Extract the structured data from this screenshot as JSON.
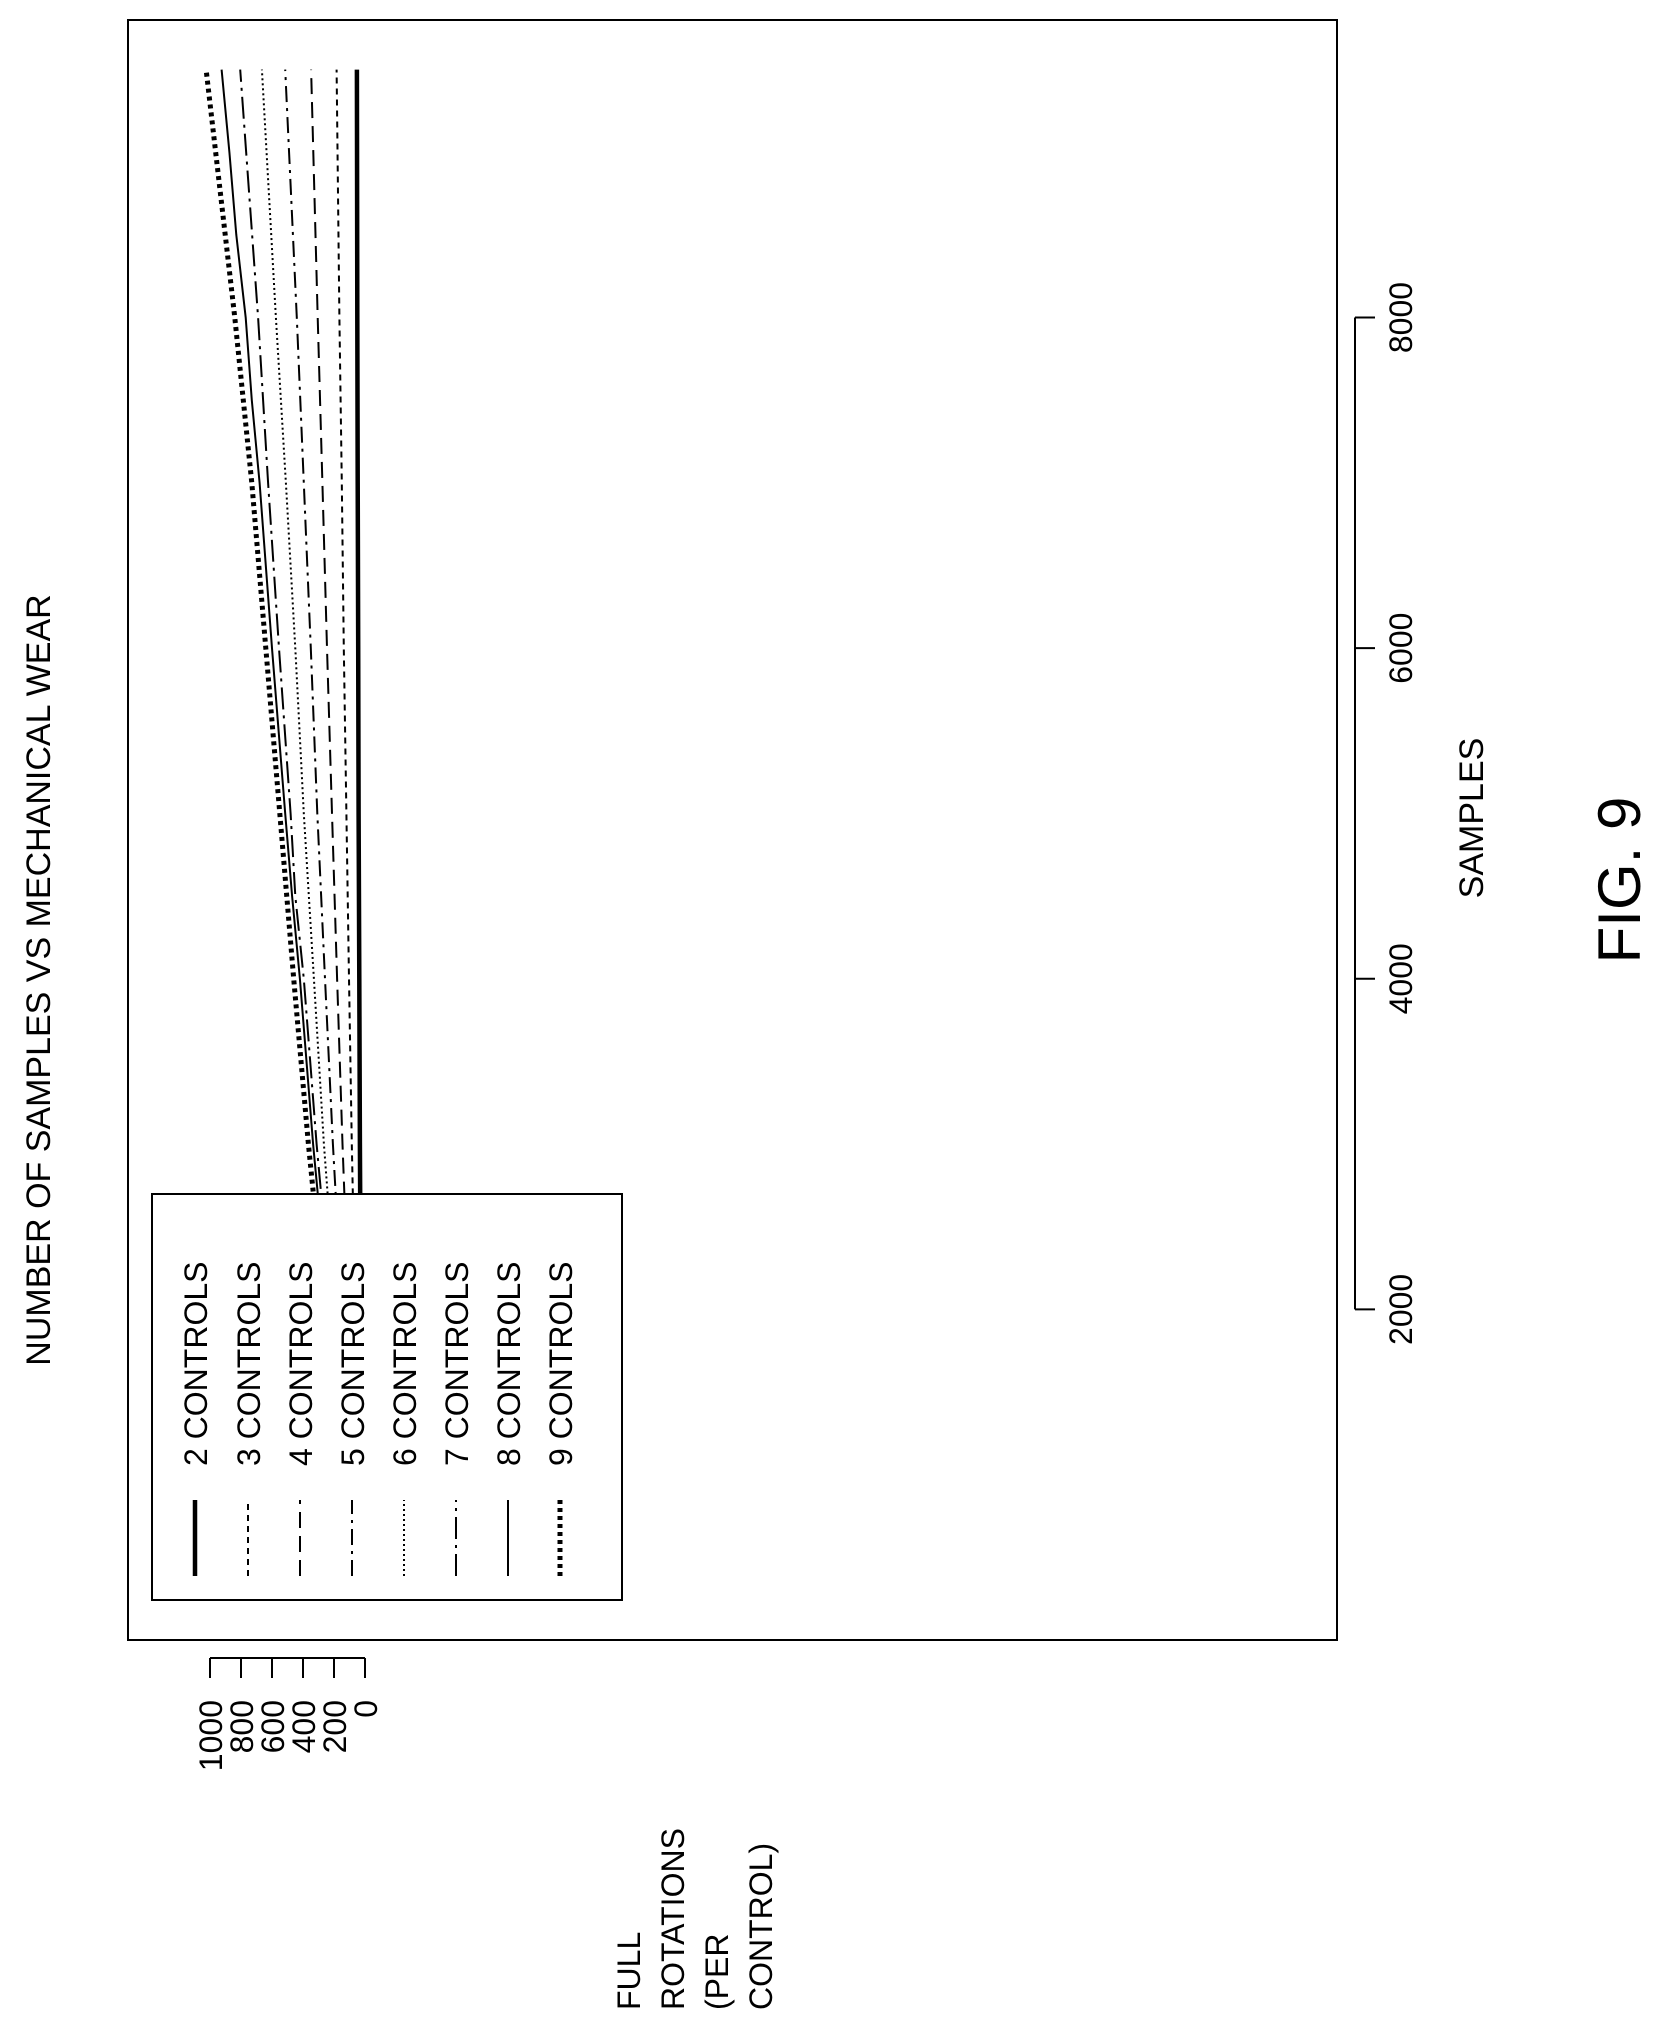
{
  "figure_label": "FIG. 9",
  "chart_data": {
    "type": "line",
    "title": "NUMBER OF SAMPLES VS MECHANICAL WEAR",
    "xlabel": "SAMPLES",
    "ylabel_lines": [
      "FULL",
      "ROTATIONS",
      "(PER",
      "CONTROL)"
    ],
    "xlim": [
      0,
      9800
    ],
    "ylim": [
      -20,
      1050
    ],
    "x_ticks": [
      2000,
      4000,
      6000,
      8000
    ],
    "y_ticks": [
      0,
      200,
      400,
      600,
      800,
      1000
    ],
    "grid": false,
    "legend_position": "bottom-left (page rotated 90°)",
    "orientation": "rotated 90° counterclockwise on page",
    "series": [
      {
        "name": "2 CONTROLS",
        "style": "solid-thick",
        "x": [
          500,
          1000,
          2000,
          3000,
          4000,
          5000,
          6000,
          7000,
          8000,
          9500
        ],
        "y": [
          12,
          20,
          27,
          33,
          37,
          41,
          44,
          47,
          50,
          52
        ]
      },
      {
        "name": "3 CONTROLS",
        "style": "short-dash",
        "x": [
          500,
          1000,
          2000,
          3000,
          4000,
          5000,
          6000,
          7000,
          8000,
          9500
        ],
        "y": [
          25,
          40,
          63,
          85,
          103,
          120,
          137,
          150,
          165,
          183
        ]
      },
      {
        "name": "4 CONTROLS",
        "style": "long-dash",
        "x": [
          500,
          1000,
          2000,
          3000,
          4000,
          5000,
          6000,
          7000,
          8000,
          9500
        ],
        "y": [
          38,
          62,
          105,
          145,
          180,
          213,
          245,
          275,
          305,
          348
        ]
      },
      {
        "name": "5 CONTROLS",
        "style": "dash-dot",
        "x": [
          500,
          1000,
          2000,
          3000,
          4000,
          5000,
          6000,
          7000,
          8000,
          9500
        ],
        "y": [
          48,
          82,
          148,
          207,
          258,
          308,
          350,
          395,
          440,
          515
        ]
      },
      {
        "name": "6 CONTROLS",
        "style": "dotted",
        "x": [
          500,
          1000,
          2000,
          3000,
          4000,
          5000,
          6000,
          7000,
          8000,
          9500
        ],
        "y": [
          58,
          100,
          185,
          265,
          330,
          395,
          450,
          510,
          575,
          665
        ]
      },
      {
        "name": "7 CONTROLS",
        "style": "dash-dot-long",
        "x": [
          500,
          1000,
          2000,
          3000,
          4000,
          4500,
          5000,
          6000,
          7000,
          8000,
          9500
        ],
        "y": [
          65,
          115,
          215,
          312,
          395,
          450,
          480,
          555,
          625,
          690,
          805
        ]
      },
      {
        "name": "8 CONTROLS",
        "style": "solid-thin",
        "x": [
          500,
          1000,
          2000,
          3000,
          4000,
          4500,
          5000,
          6000,
          7000,
          7500,
          8000,
          8500,
          9000,
          9500
        ],
        "y": [
          70,
          125,
          235,
          335,
          420,
          470,
          515,
          600,
          680,
          730,
          770,
          830,
          875,
          925
        ]
      },
      {
        "name": "9 CONTROLS",
        "style": "dotted-thick",
        "x": [
          500,
          1000,
          2000,
          3000,
          4000,
          5000,
          6000,
          7000,
          8000,
          9500
        ],
        "y": [
          72,
          135,
          258,
          365,
          460,
          550,
          640,
          730,
          840,
          1025
        ]
      }
    ]
  }
}
